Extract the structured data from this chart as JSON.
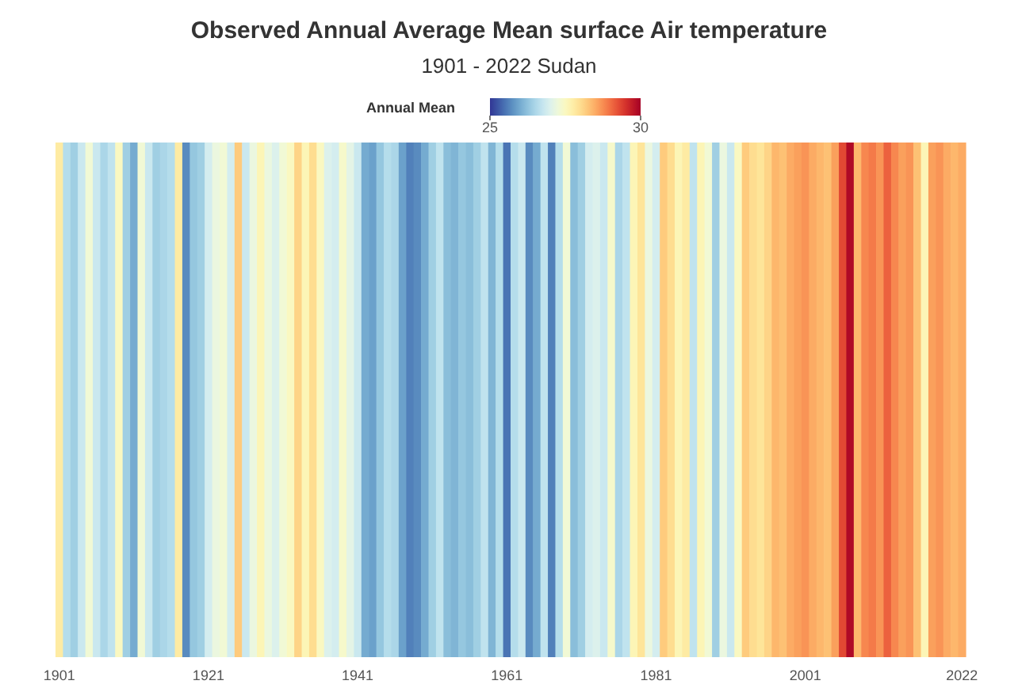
{
  "chart_data": {
    "type": "heatmap",
    "title": "Observed Annual Average Mean surface Air temperature",
    "subtitle": "1901 - 2022 Sudan",
    "clabel": "Annual Mean",
    "clim": [
      25,
      30
    ],
    "cticks": [
      25,
      30
    ],
    "categories": [
      "1901",
      null,
      null,
      null,
      null,
      null,
      null,
      null,
      null,
      null,
      null,
      null,
      null,
      null,
      null,
      null,
      null,
      null,
      null,
      null,
      "1921",
      null,
      null,
      null,
      null,
      null,
      null,
      null,
      null,
      null,
      null,
      null,
      null,
      null,
      null,
      null,
      null,
      null,
      null,
      null,
      "1941",
      null,
      null,
      null,
      null,
      null,
      null,
      null,
      null,
      null,
      null,
      null,
      null,
      null,
      null,
      null,
      null,
      null,
      null,
      null,
      "1961",
      null,
      null,
      null,
      null,
      null,
      null,
      null,
      null,
      null,
      null,
      null,
      null,
      null,
      null,
      null,
      null,
      null,
      null,
      null,
      "1981",
      null,
      null,
      null,
      null,
      null,
      null,
      null,
      null,
      null,
      null,
      null,
      null,
      null,
      null,
      null,
      null,
      null,
      null,
      null,
      "2001",
      null,
      null,
      null,
      null,
      null,
      null,
      null,
      null,
      null,
      null,
      null,
      null,
      null,
      null,
      null,
      null,
      null,
      null,
      null,
      null,
      "2022"
    ],
    "y_categories": [
      null
    ],
    "cells": [
      [
        27.8,
        26.6,
        26.4,
        26.8,
        27.3,
        26.8,
        26.5,
        26.7,
        27.5,
        26.4,
        26.0,
        27.3,
        26.8,
        26.4,
        26.5,
        26.6,
        27.8,
        25.7,
        26.3,
        26.4,
        26.9,
        27.2,
        27.3,
        26.9,
        28.2,
        26.8,
        27.2,
        27.6,
        27.2,
        27.0,
        27.3,
        27.5,
        28.1,
        27.6,
        28.0,
        27.5,
        27.0,
        26.9,
        27.4,
        27.1,
        26.8,
        26.0,
        25.9,
        26.3,
        26.6,
        26.5,
        25.9,
        25.6,
        25.7,
        26.0,
        26.4,
        26.7,
        26.2,
        26.1,
        26.3,
        26.2,
        26.4,
        26.7,
        26.1,
        26.6,
        25.5,
        26.6,
        26.8,
        25.7,
        26.0,
        26.7,
        25.6,
        26.6,
        27.3,
        26.2,
        26.4,
        26.9,
        27.0,
        26.8,
        27.4,
        26.5,
        26.7,
        27.6,
        27.9,
        27.2,
        26.9,
        28.2,
        28.0,
        27.6,
        27.8,
        26.7,
        27.6,
        27.3,
        26.4,
        27.2,
        26.8,
        27.5,
        28.2,
        28.0,
        27.9,
        28.1,
        28.4,
        28.3,
        28.5,
        28.6,
        28.7,
        28.5,
        28.4,
        28.3,
        28.6,
        29.3,
        29.9,
        28.4,
        28.8,
        28.9,
        28.7,
        29.1,
        28.8,
        28.6,
        28.7,
        28.3,
        27.6,
        28.6,
        28.7,
        28.5,
        28.4,
        28.5
      ]
    ],
    "grid": false
  }
}
